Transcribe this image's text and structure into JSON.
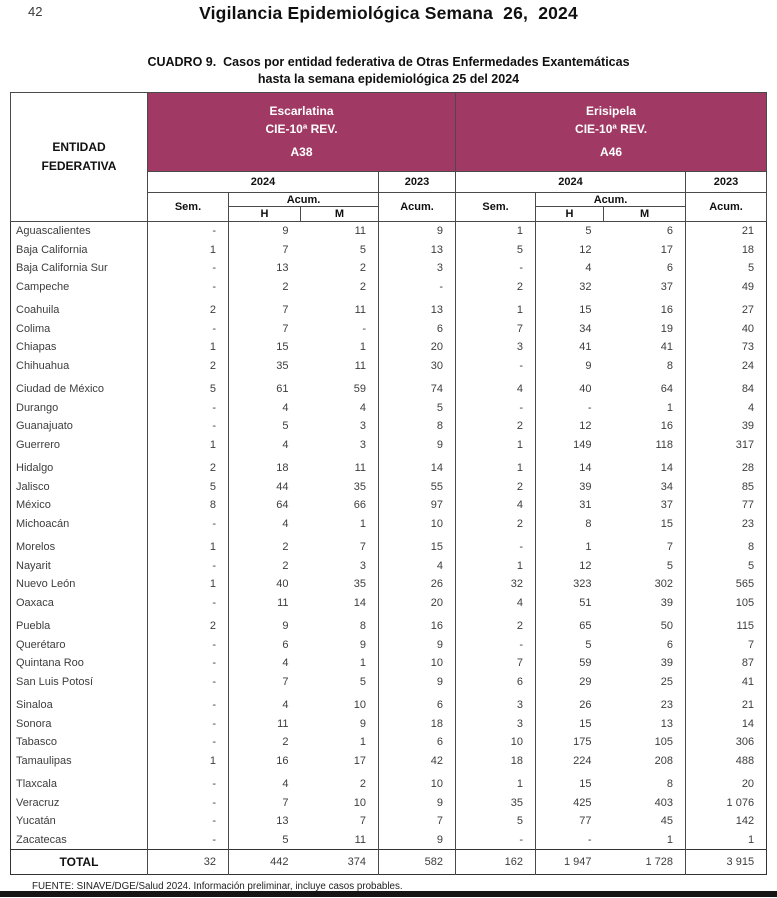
{
  "page": {
    "page_number": "42",
    "title": "Vigilancia Epidemiológica Semana  26,  2024",
    "caption_line1": "CUADRO 9.  Casos por entidad federativa de Otras Enfermedades Exantemáticas",
    "caption_line2": "hasta la semana epidemiológica 25 del 2024",
    "footer": "FUENTE: SINAVE/DGE/Salud 2024. Información preliminar, incluye casos probables."
  },
  "colors": {
    "header_bg": "#A03A64",
    "border": "#4a4a4a",
    "bottom_bar": "#151515"
  },
  "table": {
    "entity_header": "ENTIDAD\nFEDERATIVA",
    "groups": [
      {
        "disease": "Escarlatina",
        "cie": "CIE-10ª REV.",
        "code": "A38"
      },
      {
        "disease": "Erisipela",
        "cie": "CIE-10ª REV.",
        "code": "A46"
      }
    ],
    "year_2024": "2024",
    "year_2023": "2023",
    "sem_label": "Sem.",
    "acum_label": "Acum.",
    "h_label": "H",
    "m_label": "M",
    "total_label": "TOTAL",
    "rows": [
      {
        "entity": "Aguascalientes",
        "values": [
          "-",
          "9",
          "11",
          "9",
          "1",
          "5",
          "6",
          "21"
        ]
      },
      {
        "entity": "Baja California",
        "values": [
          "1",
          "7",
          "5",
          "13",
          "5",
          "12",
          "17",
          "18"
        ]
      },
      {
        "entity": "Baja California Sur",
        "values": [
          "-",
          "13",
          "2",
          "3",
          "-",
          "4",
          "6",
          "5"
        ]
      },
      {
        "entity": "Campeche",
        "values": [
          "-",
          "2",
          "2",
          "-",
          "2",
          "32",
          "37",
          "49"
        ]
      },
      {
        "entity": "Coahuila",
        "values": [
          "2",
          "7",
          "11",
          "13",
          "1",
          "15",
          "16",
          "27"
        ]
      },
      {
        "entity": "Colima",
        "values": [
          "-",
          "7",
          "-",
          "6",
          "7",
          "34",
          "19",
          "40"
        ]
      },
      {
        "entity": "Chiapas",
        "values": [
          "1",
          "15",
          "1",
          "20",
          "3",
          "41",
          "41",
          "73"
        ]
      },
      {
        "entity": "Chihuahua",
        "values": [
          "2",
          "35",
          "11",
          "30",
          "-",
          "9",
          "8",
          "24"
        ]
      },
      {
        "entity": "Ciudad de México",
        "values": [
          "5",
          "61",
          "59",
          "74",
          "4",
          "40",
          "64",
          "84"
        ]
      },
      {
        "entity": "Durango",
        "values": [
          "-",
          "4",
          "4",
          "5",
          "-",
          "-",
          "1",
          "4"
        ]
      },
      {
        "entity": "Guanajuato",
        "values": [
          "-",
          "5",
          "3",
          "8",
          "2",
          "12",
          "16",
          "39"
        ]
      },
      {
        "entity": "Guerrero",
        "values": [
          "1",
          "4",
          "3",
          "9",
          "1",
          "149",
          "118",
          "317"
        ]
      },
      {
        "entity": "Hidalgo",
        "values": [
          "2",
          "18",
          "11",
          "14",
          "1",
          "14",
          "14",
          "28"
        ]
      },
      {
        "entity": "Jalisco",
        "values": [
          "5",
          "44",
          "35",
          "55",
          "2",
          "39",
          "34",
          "85"
        ]
      },
      {
        "entity": "México",
        "values": [
          "8",
          "64",
          "66",
          "97",
          "4",
          "31",
          "37",
          "77"
        ]
      },
      {
        "entity": "Michoacán",
        "values": [
          "-",
          "4",
          "1",
          "10",
          "2",
          "8",
          "15",
          "23"
        ]
      },
      {
        "entity": "Morelos",
        "values": [
          "1",
          "2",
          "7",
          "15",
          "-",
          "1",
          "7",
          "8"
        ]
      },
      {
        "entity": "Nayarit",
        "values": [
          "-",
          "2",
          "3",
          "4",
          "1",
          "12",
          "5",
          "5"
        ]
      },
      {
        "entity": "Nuevo León",
        "values": [
          "1",
          "40",
          "35",
          "26",
          "32",
          "323",
          "302",
          "565"
        ]
      },
      {
        "entity": "Oaxaca",
        "values": [
          "-",
          "11",
          "14",
          "20",
          "4",
          "51",
          "39",
          "105"
        ]
      },
      {
        "entity": "Puebla",
        "values": [
          "2",
          "9",
          "8",
          "16",
          "2",
          "65",
          "50",
          "115"
        ]
      },
      {
        "entity": "Querétaro",
        "values": [
          "-",
          "6",
          "9",
          "9",
          "-",
          "5",
          "6",
          "7"
        ]
      },
      {
        "entity": "Quintana Roo",
        "values": [
          "-",
          "4",
          "1",
          "10",
          "7",
          "59",
          "39",
          "87"
        ]
      },
      {
        "entity": "San Luis Potosí",
        "values": [
          "-",
          "7",
          "5",
          "9",
          "6",
          "29",
          "25",
          "41"
        ]
      },
      {
        "entity": "Sinaloa",
        "values": [
          "-",
          "4",
          "10",
          "6",
          "3",
          "26",
          "23",
          "21"
        ]
      },
      {
        "entity": "Sonora",
        "values": [
          "-",
          "11",
          "9",
          "18",
          "3",
          "15",
          "13",
          "14"
        ]
      },
      {
        "entity": "Tabasco",
        "values": [
          "-",
          "2",
          "1",
          "6",
          "10",
          "175",
          "105",
          "306"
        ]
      },
      {
        "entity": "Tamaulipas",
        "values": [
          "1",
          "16",
          "17",
          "42",
          "18",
          "224",
          "208",
          "488"
        ]
      },
      {
        "entity": "Tlaxcala",
        "values": [
          "-",
          "4",
          "2",
          "10",
          "1",
          "15",
          "8",
          "20"
        ]
      },
      {
        "entity": "Veracruz",
        "values": [
          "-",
          "7",
          "10",
          "9",
          "35",
          "425",
          "403",
          "1 076"
        ]
      },
      {
        "entity": "Yucatán",
        "values": [
          "-",
          "13",
          "7",
          "7",
          "5",
          "77",
          "45",
          "142"
        ]
      },
      {
        "entity": "Zacatecas",
        "values": [
          "-",
          "5",
          "11",
          "9",
          "-",
          "-",
          "1",
          "1"
        ]
      }
    ],
    "total": [
      "32",
      "442",
      "374",
      "582",
      "162",
      "1 947",
      "1 728",
      "3 915"
    ]
  }
}
